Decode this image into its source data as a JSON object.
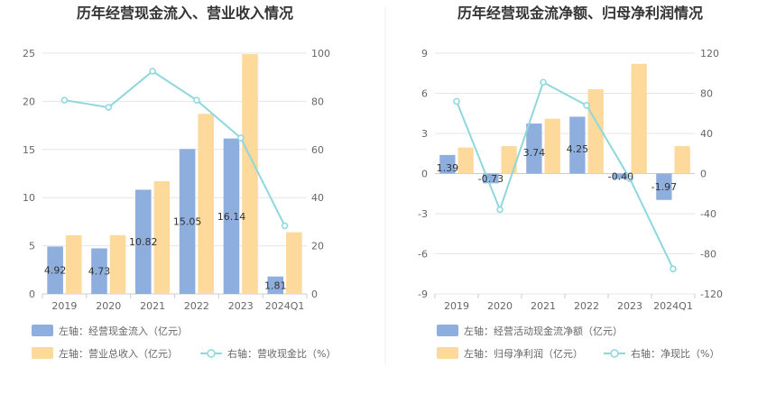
{
  "colors": {
    "bar_blue": "#8eaedd",
    "bar_orange": "#fdd99c",
    "line": "#8dd7dd",
    "grid": "#e6e6e6",
    "divider": "#eeeeee"
  },
  "chart_data": [
    {
      "type": "bar",
      "title": "历年经营现金流入、营业收入情况",
      "categories": [
        "2019",
        "2020",
        "2021",
        "2022",
        "2023",
        "2024Q1"
      ],
      "left_axis": {
        "min": 0,
        "max": 25,
        "ticks": [
          "0",
          "5",
          "10",
          "15",
          "20",
          "25"
        ]
      },
      "right_axis": {
        "min": 0,
        "max": 100,
        "ticks": [
          "0",
          "20",
          "40",
          "60",
          "80",
          "100"
        ]
      },
      "series": [
        {
          "name": "左轴：经营现金流入（亿元）",
          "kind": "bar",
          "axis": "left",
          "color": "#8eaedd",
          "values": [
            4.92,
            4.73,
            10.82,
            15.05,
            16.14,
            1.81
          ],
          "labels": [
            "4.92",
            "4.73",
            "10.82",
            "15.05",
            "16.14",
            "1.81"
          ]
        },
        {
          "name": "左轴：营业总收入（亿元）",
          "kind": "bar",
          "axis": "left",
          "color": "#fdd99c",
          "values": [
            6.1,
            6.1,
            11.7,
            18.7,
            24.9,
            6.4
          ]
        },
        {
          "name": "右轴：营收现金比（%）",
          "kind": "line",
          "axis": "right",
          "color": "#8dd7dd",
          "values": [
            80.5,
            77.5,
            92.5,
            80.5,
            64.8,
            28.3
          ]
        }
      ],
      "legend": [
        {
          "label": "左轴：经营现金流入（亿元）",
          "kind": "bar",
          "color": "#8eaedd"
        },
        {
          "label": "左轴：营业总收入（亿元）",
          "kind": "bar",
          "color": "#fdd99c"
        },
        {
          "label": "右轴：营收现金比（%）",
          "kind": "line",
          "color": "#8dd7dd"
        }
      ]
    },
    {
      "type": "bar",
      "title": "历年经营现金流净额、归母净利润情况",
      "categories": [
        "2019",
        "2020",
        "2021",
        "2022",
        "2023",
        "2024Q1"
      ],
      "left_axis": {
        "min": -9,
        "max": 9,
        "ticks": [
          "-9",
          "-6",
          "-3",
          "0",
          "3",
          "6",
          "9"
        ]
      },
      "right_axis": {
        "min": -120,
        "max": 120,
        "ticks": [
          "-120",
          "-80",
          "-40",
          "0",
          "40",
          "80",
          "120"
        ]
      },
      "series": [
        {
          "name": "左轴：经营活动现金流净额（亿元）",
          "kind": "bar",
          "axis": "left",
          "color": "#8eaedd",
          "values": [
            1.39,
            -0.73,
            3.74,
            4.25,
            -0.4,
            -1.97
          ],
          "labels": [
            "1.39",
            "-0.73",
            "3.74",
            "4.25",
            "-0.40",
            "-1.97"
          ]
        },
        {
          "name": "左轴：归母净利润（亿元）",
          "kind": "bar",
          "axis": "left",
          "color": "#fdd99c",
          "values": [
            1.95,
            2.05,
            4.1,
            6.3,
            8.2,
            2.05
          ]
        },
        {
          "name": "右轴：净现比（%）",
          "kind": "line",
          "axis": "right",
          "color": "#8dd7dd",
          "values": [
            72,
            -36,
            91,
            68,
            -5,
            -95
          ]
        }
      ],
      "legend": [
        {
          "label": "左轴：经营活动现金流净额（亿元）",
          "kind": "bar",
          "color": "#8eaedd"
        },
        {
          "label": "左轴：归母净利润（亿元）",
          "kind": "bar",
          "color": "#fdd99c"
        },
        {
          "label": "右轴：净现比（%）",
          "kind": "line",
          "color": "#8dd7dd"
        }
      ]
    }
  ]
}
